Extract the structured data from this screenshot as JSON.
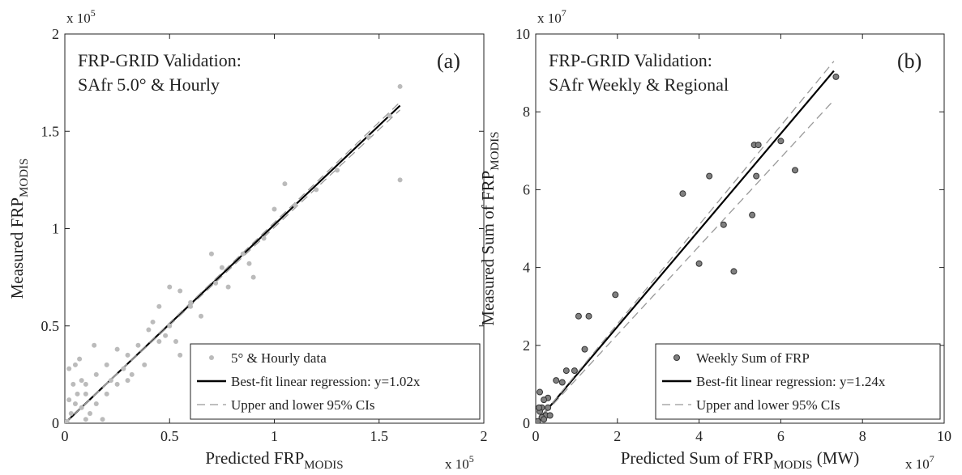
{
  "chart_data": [
    {
      "type": "scatter",
      "annotations": [
        "FRP-GRID Validation:",
        "SAfr 5.0° & Hourly"
      ],
      "panel_label": "(a)",
      "xlabel": {
        "text": "Predicted FRP",
        "sub": "MODIS"
      },
      "ylabel": {
        "text": "Measured FRP",
        "sub": "MODIS"
      },
      "x_multiplier": {
        "base": "x 10",
        "exp": "5"
      },
      "y_multiplier": {
        "base": "x 10",
        "exp": "5"
      },
      "xlim": [
        0,
        2
      ],
      "xticks": [
        0,
        0.5,
        1,
        1.5,
        2
      ],
      "ylim": [
        0,
        2
      ],
      "yticks": [
        0,
        0.5,
        1,
        1.5,
        2
      ],
      "legend": "lower right",
      "series": [
        {
          "name": "5° & Hourly data",
          "kind": "scatter",
          "color": "#bbbbbb",
          "x": [
            1.6,
            1.6,
            1.05,
            1.0,
            0.7,
            0.75,
            0.78,
            0.88,
            0.9,
            0.5,
            0.55,
            0.45,
            0.6,
            0.65,
            0.5,
            0.48,
            0.4,
            0.35,
            0.45,
            0.3,
            0.25,
            0.38,
            0.28,
            0.2,
            0.15,
            0.1,
            0.05,
            0.02,
            0.1,
            0.05,
            0.2,
            0.25,
            0.18,
            0.12,
            0.08,
            0.03,
            0.01,
            0.06,
            0.15,
            0.3,
            0.55,
            0.53,
            0.42,
            0.32,
            0.22,
            0.08,
            0.02,
            0.1,
            0.04,
            1.2,
            1.3,
            1.45,
            0.95,
            0.85,
            0.6,
            0.72,
            1.1,
            1.55,
            0.07,
            0.14
          ],
          "values": [
            1.73,
            1.25,
            1.23,
            1.1,
            0.87,
            0.8,
            0.7,
            0.82,
            0.75,
            0.7,
            0.68,
            0.6,
            0.6,
            0.55,
            0.5,
            0.45,
            0.48,
            0.4,
            0.42,
            0.35,
            0.38,
            0.3,
            0.28,
            0.3,
            0.25,
            0.2,
            0.3,
            0.28,
            0.15,
            0.1,
            0.15,
            0.2,
            0.02,
            0.05,
            0.08,
            0.05,
            0.01,
            0.15,
            0.1,
            0.22,
            0.35,
            0.42,
            0.52,
            0.25,
            0.22,
            0.22,
            0.12,
            0.02,
            0.2,
            1.2,
            1.3,
            1.47,
            0.95,
            0.87,
            0.62,
            0.72,
            1.12,
            1.58,
            0.33,
            0.4
          ]
        },
        {
          "name": "Best-fit linear regression: y=1.02x",
          "kind": "line",
          "color": "#000000",
          "x": [
            0,
            1.6
          ],
          "values": [
            0,
            1.632
          ]
        },
        {
          "name": "Upper and lower 95% CIs",
          "kind": "dashed",
          "color": "#999999",
          "x": [
            0,
            1.6
          ],
          "values": [
            0,
            1.65
          ],
          "lower": [
            0,
            1.61
          ]
        }
      ]
    },
    {
      "type": "scatter",
      "annotations": [
        "FRP-GRID Validation:",
        "SAfr Weekly & Regional"
      ],
      "panel_label": "(b)",
      "xlabel": {
        "text": "Predicted Sum of FRP",
        "sub": "MODIS",
        "suffix": " (MW)"
      },
      "ylabel": {
        "text": "Measured Sum of FRP",
        "sub": "MODIS"
      },
      "x_multiplier": {
        "base": "x 10",
        "exp": "7"
      },
      "y_multiplier": {
        "base": "x 10",
        "exp": "7"
      },
      "xlim": [
        0,
        10
      ],
      "xticks": [
        0,
        2,
        4,
        6,
        8,
        10
      ],
      "ylim": [
        0,
        10
      ],
      "yticks": [
        0,
        2,
        4,
        6,
        8,
        10
      ],
      "legend": "lower right",
      "series": [
        {
          "name": "Weekly Sum of FRP",
          "kind": "scatter",
          "color": "#808080",
          "edgecolor": "#333333",
          "x": [
            7.35,
            6.0,
            5.35,
            5.45,
            5.4,
            6.35,
            4.25,
            3.6,
            4.6,
            5.3,
            4.0,
            4.85,
            1.95,
            1.05,
            1.3,
            1.2,
            0.95,
            0.75,
            0.5,
            0.65,
            0.1,
            0.3,
            0.2,
            0.15,
            0.3,
            0.1,
            0.25,
            0.15,
            0.05,
            0.2,
            0.35,
            0.08
          ],
          "values": [
            8.9,
            7.25,
            7.15,
            7.15,
            6.35,
            6.5,
            6.35,
            5.9,
            5.1,
            5.35,
            4.1,
            3.9,
            3.3,
            2.75,
            2.75,
            1.9,
            1.35,
            1.35,
            1.1,
            1.05,
            0.8,
            0.65,
            0.6,
            0.4,
            0.4,
            0.3,
            0.2,
            0.15,
            0.05,
            0.1,
            0.2,
            0.4
          ]
        },
        {
          "name": "Best-fit linear regression: y=1.24x",
          "kind": "line",
          "color": "#000000",
          "x": [
            0,
            7.3
          ],
          "values": [
            0,
            9.052
          ]
        },
        {
          "name": "Upper and lower 95% CIs",
          "kind": "dashed",
          "color": "#999999",
          "x": [
            0,
            7.3
          ],
          "values": [
            0,
            9.3
          ],
          "lower": [
            0,
            8.3
          ]
        }
      ]
    }
  ]
}
